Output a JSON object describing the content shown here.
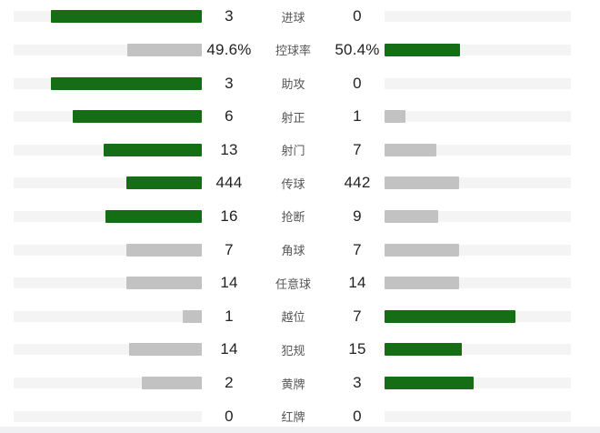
{
  "chart_data": {
    "type": "bar",
    "subtype": "mirrored-stat-comparison",
    "title": "",
    "legend_position": "none",
    "grid": false,
    "bar_scale_fraction_of_track": 0.8,
    "colors": {
      "leading_fill": "#156e15",
      "trailing_fill": "#c2c2c2",
      "track": "#f4f4f4",
      "value_text": "#222222",
      "label_text": "#565656",
      "background": "#ffffff",
      "bottom_strip": "#f0f1f2"
    },
    "rows": [
      {
        "label": "进球",
        "home": 3,
        "away": 0,
        "home_text": "3",
        "away_text": "0"
      },
      {
        "label": "控球率",
        "home": 49.6,
        "away": 50.4,
        "home_text": "49.6%",
        "away_text": "50.4%"
      },
      {
        "label": "助攻",
        "home": 3,
        "away": 0,
        "home_text": "3",
        "away_text": "0"
      },
      {
        "label": "射正",
        "home": 6,
        "away": 1,
        "home_text": "6",
        "away_text": "1"
      },
      {
        "label": "射门",
        "home": 13,
        "away": 7,
        "home_text": "13",
        "away_text": "7"
      },
      {
        "label": "传球",
        "home": 444,
        "away": 442,
        "home_text": "444",
        "away_text": "442"
      },
      {
        "label": "抢断",
        "home": 16,
        "away": 9,
        "home_text": "16",
        "away_text": "9"
      },
      {
        "label": "角球",
        "home": 7,
        "away": 7,
        "home_text": "7",
        "away_text": "7"
      },
      {
        "label": "任意球",
        "home": 14,
        "away": 14,
        "home_text": "14",
        "away_text": "14"
      },
      {
        "label": "越位",
        "home": 1,
        "away": 7,
        "home_text": "1",
        "away_text": "7"
      },
      {
        "label": "犯规",
        "home": 14,
        "away": 15,
        "home_text": "14",
        "away_text": "15"
      },
      {
        "label": "黄牌",
        "home": 2,
        "away": 3,
        "home_text": "2",
        "away_text": "3"
      },
      {
        "label": "红牌",
        "home": 0,
        "away": 0,
        "home_text": "0",
        "away_text": "0"
      }
    ]
  }
}
